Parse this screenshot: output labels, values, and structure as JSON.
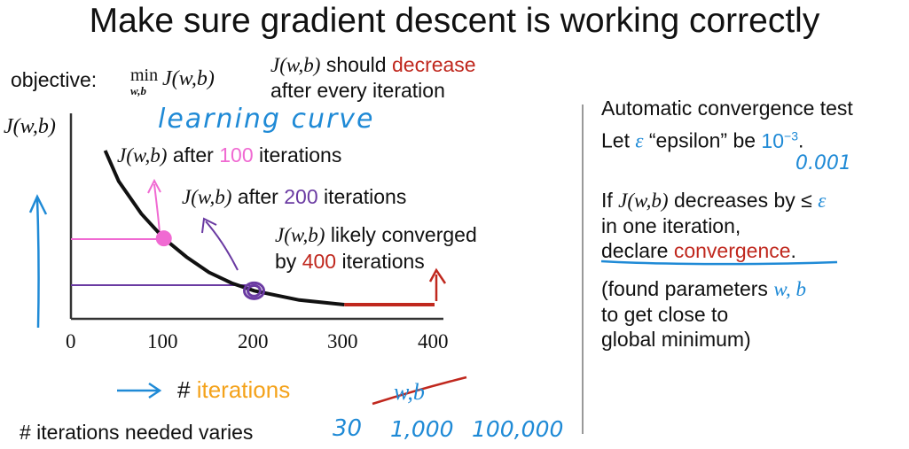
{
  "title": "Make sure gradient descent is working correctly",
  "objective": {
    "label": "objective:",
    "min": "min",
    "min_sub": "w,b",
    "expr": "J(w,b)"
  },
  "should_decrease": {
    "expr": "J(w,b)",
    "pre": "should",
    "word": "decrease",
    "line2": "after every iteration"
  },
  "plot": {
    "y_label": "J(w,b)",
    "curve_label": "learning curve",
    "ann100": {
      "expr": "J(w,b)",
      "pre": "after",
      "num": "100",
      "post": "iterations"
    },
    "ann200": {
      "expr": "J(w,b)",
      "pre": "after",
      "num": "200",
      "post": "iterations"
    },
    "ann400": {
      "expr": "J(w,b)",
      "line1": "likely converged",
      "pre": "by",
      "num": "400",
      "post": "iterations"
    },
    "ticks": [
      "0",
      "100",
      "200",
      "300",
      "400"
    ],
    "x_label_hash": "#",
    "x_label_word": "iterations",
    "crossed": "w,b"
  },
  "chart_data": {
    "type": "line",
    "title": "learning curve",
    "xlabel": "# iterations",
    "ylabel": "J(w,b)",
    "x": [
      35,
      50,
      75,
      100,
      125,
      150,
      175,
      200,
      225,
      250,
      275,
      300,
      325,
      350,
      375,
      400
    ],
    "y": [
      1.0,
      0.8,
      0.59,
      0.43,
      0.31,
      0.21,
      0.14,
      0.09,
      0.06,
      0.03,
      0.015,
      0.0,
      0.0,
      0.0,
      0.0,
      0.0
    ],
    "xlim": [
      0,
      400
    ],
    "ticks": [
      0,
      100,
      200,
      300,
      400
    ],
    "colors": {
      "curve": "#111111",
      "converged": "#c0281e",
      "mark100": "#f06ad2",
      "mark200": "#6a3aa2",
      "axis": "#1f8ad6"
    }
  },
  "varies": {
    "label": "# iterations needed varies",
    "values": [
      "30",
      "1,000",
      "100,000"
    ]
  },
  "right": {
    "heading": "Automatic convergence test",
    "let_pre": "Let",
    "epsilon": "ε",
    "let_mid": "“epsilon” be",
    "let_val": "10",
    "let_exp": "−3",
    "let_end": ".",
    "decimal": "0.001",
    "if_pre": "If",
    "if_expr": "J(w,b)",
    "if_mid": "decreases by ≤",
    "if_eps": "ε",
    "line_one": "in one iteration,",
    "declare": "declare",
    "convergence": "convergence",
    "declare_end": ".",
    "found1": "(found parameters",
    "found_expr": "w, b",
    "found2": "to get close to",
    "found3": "global minimum)"
  }
}
